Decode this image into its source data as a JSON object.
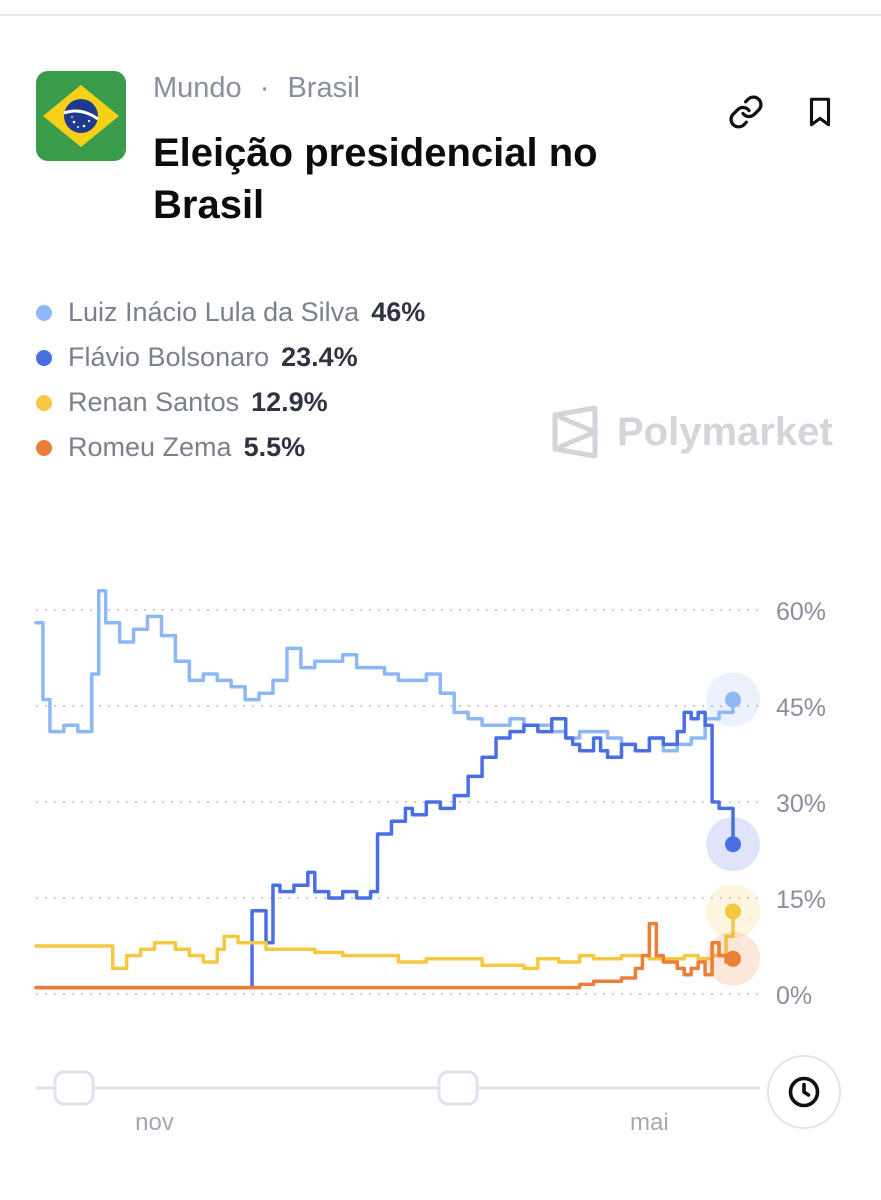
{
  "header": {
    "breadcrumb": [
      "Mundo",
      "Brasil"
    ],
    "breadcrumb_separator": "·",
    "title": "Eleição presidencial no Brasil",
    "flag_icon": "brazil-flag-icon",
    "link_icon": "link-icon",
    "bookmark_icon": "bookmark-icon"
  },
  "legend": [
    {
      "name": "Luiz Inácio Lula da Silva",
      "value": "46%",
      "color": "#8eb8f5"
    },
    {
      "name": "Flávio Bolsonaro",
      "value": "23.4%",
      "color": "#4a6fe3"
    },
    {
      "name": "Renan Santos",
      "value": "12.9%",
      "color": "#f5c842"
    },
    {
      "name": "Romeu Zema",
      "value": "5.5%",
      "color": "#ec7f36"
    }
  ],
  "watermark": {
    "text": "Polymarket",
    "icon": "polymarket-logo-icon"
  },
  "history_button": {
    "icon": "clock-icon"
  },
  "chart_data": {
    "type": "line",
    "ylim": [
      0,
      60
    ],
    "yticks": [
      "60%",
      "45%",
      "30%",
      "15%",
      "0%"
    ],
    "ytick_values": [
      60,
      45,
      30,
      15,
      0
    ],
    "x_range": [
      0,
      100
    ],
    "xticks": [
      "nov",
      "mai"
    ],
    "xtick_positions": [
      17,
      88
    ],
    "grid": true,
    "series": [
      {
        "name": "Luiz Inácio Lula da Silva",
        "color": "#8eb8f5",
        "x": [
          0,
          1,
          2,
          4,
          6,
          8,
          9,
          10,
          12,
          14,
          16,
          18,
          20,
          22,
          24,
          26,
          28,
          30,
          32,
          34,
          36,
          38,
          40,
          42,
          44,
          46,
          48,
          50,
          52,
          54,
          56,
          58,
          60,
          62,
          64,
          66,
          68,
          70,
          72,
          74,
          76,
          78,
          80,
          82,
          84,
          86,
          88,
          90,
          92,
          94,
          96,
          98,
          100
        ],
        "y": [
          58,
          46,
          41,
          42,
          41,
          50,
          63,
          58,
          55,
          57,
          59,
          56,
          52,
          49,
          50,
          49,
          48,
          46,
          47,
          49,
          54,
          51,
          52,
          52,
          53,
          51,
          51,
          50,
          49,
          49,
          50,
          47,
          44,
          43,
          42,
          42,
          43,
          42,
          42,
          41,
          40,
          41,
          41,
          40,
          39,
          38,
          40,
          38,
          39,
          40,
          43,
          44,
          46
        ]
      },
      {
        "name": "Flávio Bolsonaro",
        "color": "#4a6fe3",
        "x": [
          0,
          20,
          23,
          26,
          30,
          31,
          33,
          34,
          35,
          37,
          39,
          40,
          42,
          44,
          46,
          48,
          49,
          51,
          53,
          54,
          56,
          58,
          60,
          62,
          64,
          66,
          68,
          70,
          72,
          74,
          76,
          77,
          78,
          80,
          81,
          82,
          84,
          86,
          88,
          90,
          92,
          93,
          94,
          95,
          96,
          97,
          98,
          100
        ],
        "y": [
          1,
          1,
          1,
          1,
          1,
          13,
          8,
          17,
          16,
          17,
          19,
          16,
          15,
          16,
          15,
          16,
          25,
          27,
          29,
          28,
          30,
          29,
          31,
          34,
          37,
          40,
          41,
          42,
          41,
          43,
          40,
          39,
          38,
          40,
          38,
          37,
          39,
          38,
          40,
          39,
          41,
          44,
          43,
          44,
          42,
          30,
          29,
          23.4
        ]
      },
      {
        "name": "Renan Santos",
        "color": "#f5c842",
        "x": [
          0,
          10,
          11,
          13,
          15,
          17,
          19,
          20,
          22,
          24,
          26,
          27,
          29,
          31,
          33,
          36,
          40,
          44,
          48,
          52,
          56,
          60,
          64,
          68,
          70,
          72,
          75,
          78,
          80,
          84,
          86,
          88,
          90,
          93,
          95,
          97,
          99,
          100
        ],
        "y": [
          7.5,
          7.5,
          4,
          6,
          7,
          8,
          8,
          7,
          6,
          5,
          7,
          9,
          8,
          8,
          7,
          7,
          6.5,
          6,
          6,
          5,
          5.5,
          5.5,
          4.5,
          4.5,
          4,
          5.5,
          5,
          6,
          5.5,
          6,
          6,
          5.5,
          5.5,
          6,
          5.5,
          6,
          9,
          12.9
        ]
      },
      {
        "name": "Romeu Zema",
        "color": "#ec7f36",
        "x": [
          0,
          20,
          40,
          60,
          76,
          78,
          80,
          82,
          84,
          86,
          87,
          88,
          89,
          90,
          92,
          93,
          94,
          95,
          96,
          97,
          98,
          99,
          100
        ],
        "y": [
          1,
          1,
          1,
          1,
          1,
          1.5,
          2,
          2,
          2.5,
          4,
          6,
          11,
          6,
          5,
          4,
          3,
          4,
          5,
          3,
          8,
          6,
          5,
          5.5
        ]
      }
    ]
  }
}
